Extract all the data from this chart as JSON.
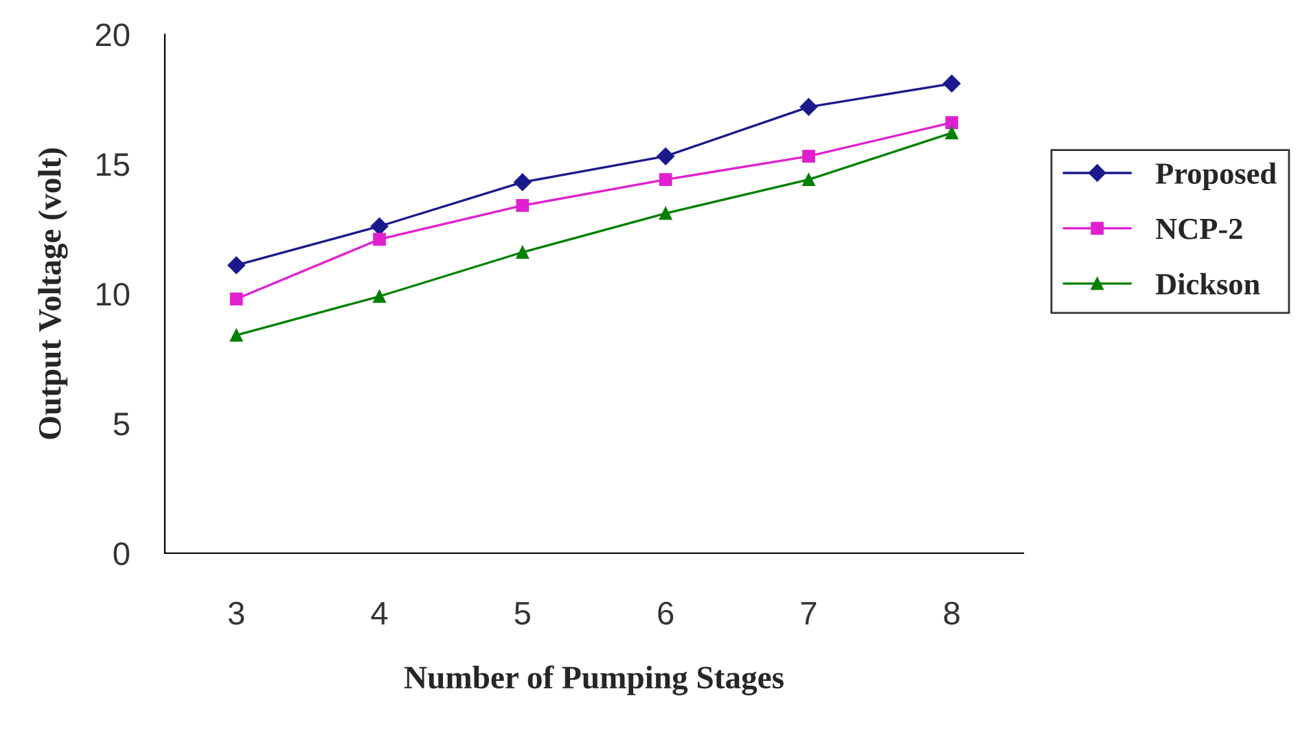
{
  "chart_data": {
    "type": "line",
    "xlabel": "Number of Pumping Stages",
    "ylabel": "Output Voltage (volt)",
    "categories": [
      "3",
      "4",
      "5",
      "6",
      "7",
      "8"
    ],
    "series": [
      {
        "name": "Proposed",
        "color": "#1a1a8c",
        "marker": "diamond",
        "values": [
          11.1,
          12.6,
          14.3,
          15.3,
          17.2,
          18.1
        ]
      },
      {
        "name": "NCP-2",
        "color": "#e020d0",
        "marker": "square",
        "values": [
          9.8,
          12.1,
          13.4,
          14.4,
          15.3,
          16.6
        ]
      },
      {
        "name": "Dickson",
        "color": "#008000",
        "marker": "triangle",
        "values": [
          8.4,
          9.9,
          11.6,
          13.1,
          14.4,
          16.2
        ]
      }
    ],
    "ylim": [
      0,
      20
    ],
    "yticks": [
      0,
      5,
      10,
      15,
      20
    ],
    "grid": false,
    "legend": "right",
    "line_style": "solid"
  }
}
